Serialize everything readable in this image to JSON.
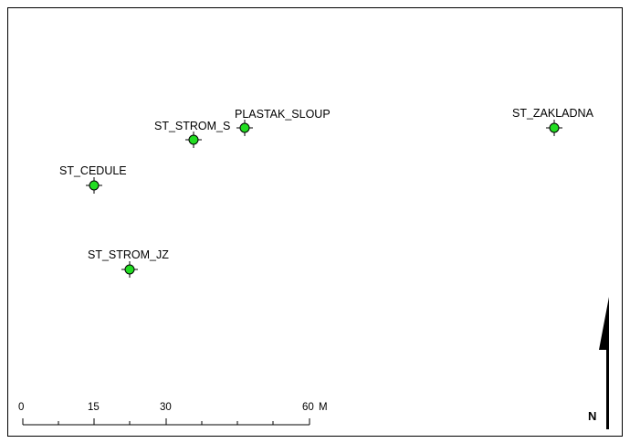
{
  "map": {
    "points": [
      {
        "name": "PLASTAK_SLOUP",
        "symbol": "green-circle-crosshair-icon"
      },
      {
        "name": "ST_STROM_S",
        "symbol": "green-circle-crosshair-icon"
      },
      {
        "name": "ST_CEDULE",
        "symbol": "green-circle-crosshair-icon"
      },
      {
        "name": "ST_STROM_JZ",
        "symbol": "green-circle-crosshair-icon"
      },
      {
        "name": "ST_ZAKLADNA",
        "symbol": "green-circle-crosshair-icon"
      }
    ],
    "symbol_color": "#22dd22"
  },
  "scale_bar": {
    "ticks": [
      "0",
      "15",
      "30",
      "60"
    ],
    "unit": "M"
  },
  "north_arrow": {
    "label": "N",
    "icon": "north-arrow-icon"
  }
}
